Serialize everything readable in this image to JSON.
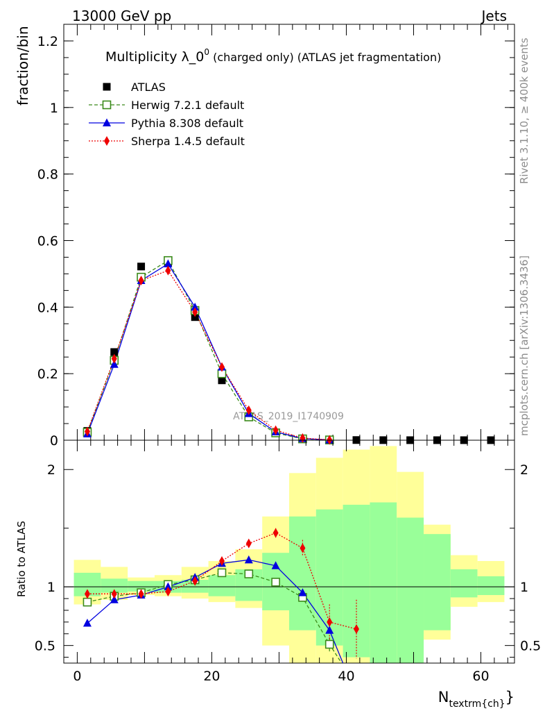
{
  "header": {
    "left": "13000 GeV pp",
    "right": "Jets"
  },
  "side_labels": {
    "rivet": "Rivet 3.1.10, ≥ 400k events",
    "mcplots": "mcplots.cern.ch [arXiv:1306.3436]"
  },
  "watermark": "ATLAS_2019_I1740909",
  "colors": {
    "atlas": "#000000",
    "herwig": "#3a8a1a",
    "pythia": "#0000e0",
    "sherpa": "#ee0000",
    "band_inner": "#99ff99",
    "band_outer": "#ffff99"
  },
  "chart_data": [
    {
      "type": "scatter",
      "title_main": "Multiplicity λ_0",
      "title_sup": "0",
      "title_rest": " (charged only) (ATLAS jet fragmentation)",
      "ylabel": "fraction/bin",
      "xlim": [
        -2,
        65
      ],
      "ylim": [
        0,
        1.25
      ],
      "yticks": [
        0,
        0.2,
        0.4,
        0.6,
        0.8,
        1,
        1.2
      ],
      "ytick_labels": [
        "0",
        "0.2",
        "0.4",
        "0.6",
        "0.8",
        "1",
        "1.2"
      ],
      "legend": [
        {
          "key": "atlas",
          "label": "ATLAS"
        },
        {
          "key": "herwig",
          "label": "Herwig 7.2.1 default"
        },
        {
          "key": "pythia",
          "label": "Pythia 8.308 default"
        },
        {
          "key": "sherpa",
          "label": "Sherpa 1.4.5 default"
        }
      ],
      "series": [
        {
          "name": "ATLAS",
          "key": "atlas",
          "x": [
            1.5,
            5.5,
            9.5,
            13.5,
            17.5,
            21.5,
            25.5,
            29.5,
            33.5,
            37.5,
            41.5,
            45.5,
            49.5,
            53.5,
            57.5,
            61.5
          ],
          "values": [
            0.028,
            0.265,
            0.522,
            0.535,
            0.37,
            0.18,
            0.07,
            0.022,
            0.005,
            0.0015,
            0.0005,
            0.0002,
            0.0001,
            0.0001,
            0.0001,
            0.0001
          ]
        },
        {
          "name": "Herwig 7.2.1 default",
          "key": "herwig",
          "x": [
            1.5,
            5.5,
            9.5,
            13.5,
            17.5,
            21.5,
            25.5,
            29.5,
            33.5,
            37.5
          ],
          "values": [
            0.024,
            0.24,
            0.49,
            0.54,
            0.39,
            0.2,
            0.07,
            0.022,
            0.004,
            0.0008
          ]
        },
        {
          "name": "Pythia 8.308 default",
          "key": "pythia",
          "x": [
            1.5,
            5.5,
            9.5,
            13.5,
            17.5,
            21.5,
            25.5,
            29.5,
            33.5,
            37.5
          ],
          "values": [
            0.019,
            0.228,
            0.48,
            0.53,
            0.4,
            0.22,
            0.08,
            0.025,
            0.005,
            0.0009
          ]
        },
        {
          "name": "Sherpa 1.4.5 default",
          "key": "sherpa",
          "x": [
            1.5,
            5.5,
            9.5,
            13.5,
            17.5,
            21.5,
            25.5,
            29.5,
            33.5,
            37.5
          ],
          "values": [
            0.026,
            0.245,
            0.48,
            0.51,
            0.385,
            0.22,
            0.09,
            0.03,
            0.0065,
            0.001
          ]
        }
      ]
    },
    {
      "type": "line",
      "ylabel": "Ratio to ATLAS",
      "xlabel_main": "N",
      "xlabel_sub": "textrm{ch}",
      "xlabel_close": "}",
      "xlim": [
        -2,
        65
      ],
      "ylim": [
        0.35,
        2.25
      ],
      "xticks": [
        0,
        20,
        40,
        60
      ],
      "xtick_labels": [
        "0",
        "20",
        "40",
        "60"
      ],
      "yticks": [
        0.5,
        1,
        2
      ],
      "ytick_labels": [
        "0.5",
        "1",
        "2"
      ],
      "bins_lo": [
        -0.5,
        3.5,
        7.5,
        11.5,
        15.5,
        19.5,
        23.5,
        27.5,
        31.5,
        35.5,
        39.5,
        43.5,
        47.5,
        51.5,
        55.5,
        59.5
      ],
      "bins_hi": [
        3.5,
        7.5,
        11.5,
        15.5,
        19.5,
        23.5,
        27.5,
        31.5,
        35.5,
        39.5,
        43.5,
        47.5,
        51.5,
        55.5,
        59.5,
        63.5
      ],
      "band_outer_lo": [
        0.85,
        0.89,
        0.93,
        0.92,
        0.9,
        0.87,
        0.82,
        0.5,
        0.35,
        0.35,
        0.35,
        0.35,
        0.35,
        0.55,
        0.83,
        0.87
      ],
      "band_outer_hi": [
        1.23,
        1.17,
        1.08,
        1.1,
        1.17,
        1.22,
        1.32,
        1.6,
        1.97,
        2.1,
        2.17,
        2.2,
        1.98,
        1.53,
        1.27,
        1.22
      ],
      "band_inner_lo": [
        0.92,
        0.95,
        0.96,
        0.95,
        0.95,
        0.92,
        0.88,
        0.8,
        0.63,
        0.5,
        0.4,
        0.35,
        0.35,
        0.63,
        0.91,
        0.93
      ],
      "band_inner_hi": [
        1.12,
        1.07,
        1.05,
        1.05,
        1.06,
        1.1,
        1.15,
        1.29,
        1.6,
        1.66,
        1.7,
        1.72,
        1.59,
        1.45,
        1.15,
        1.09
      ],
      "series": [
        {
          "name": "Herwig 7.2.1 default",
          "key": "herwig",
          "x": [
            1.5,
            5.5,
            9.5,
            13.5,
            17.5,
            21.5,
            25.5,
            29.5,
            33.5,
            37.5,
            39.3
          ],
          "values": [
            0.87,
            0.92,
            0.95,
            1.02,
            1.06,
            1.12,
            1.11,
            1.04,
            0.91,
            0.51,
            0.35
          ],
          "err": [
            0,
            0,
            0,
            0,
            0,
            0,
            0,
            0,
            0,
            0.06,
            0
          ]
        },
        {
          "name": "Pythia 8.308 default",
          "key": "pythia",
          "x": [
            1.5,
            5.5,
            9.5,
            13.5,
            17.5,
            21.5,
            25.5,
            29.5,
            33.5,
            37.5,
            39.5
          ],
          "values": [
            0.69,
            0.89,
            0.93,
            1.0,
            1.08,
            1.2,
            1.23,
            1.18,
            0.95,
            0.63,
            0.35
          ],
          "err": [
            0,
            0,
            0,
            0,
            0,
            0,
            0,
            0,
            0,
            0,
            0
          ]
        },
        {
          "name": "Sherpa 1.4.5 default",
          "key": "sherpa",
          "x": [
            1.5,
            5.5,
            9.5,
            13.5,
            17.5,
            21.5,
            25.5,
            29.5,
            33.5,
            37.5,
            41.5
          ],
          "values": [
            0.94,
            0.94,
            0.94,
            0.96,
            1.05,
            1.22,
            1.37,
            1.46,
            1.33,
            0.7,
            0.64
          ],
          "err": [
            0.03,
            0.02,
            0.01,
            0.01,
            0.01,
            0.01,
            0.02,
            0.04,
            0.07,
            0.15,
            0.25
          ]
        }
      ]
    }
  ]
}
